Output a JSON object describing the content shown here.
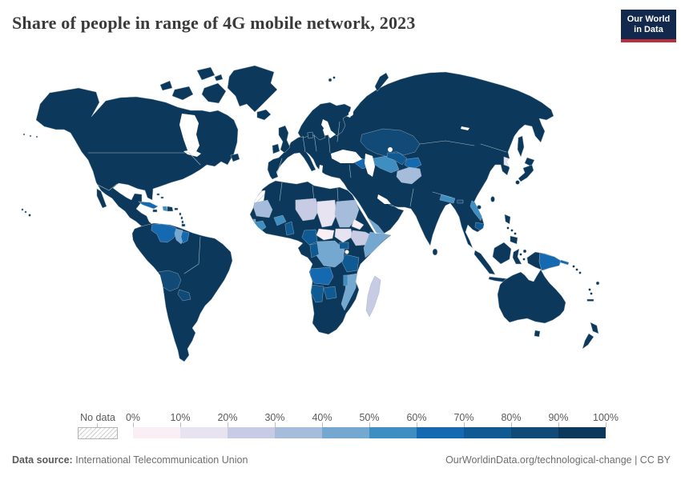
{
  "header": {
    "title": "Share of people in range of 4G mobile network, 2023",
    "logo": {
      "line1": "Our World",
      "line2": "in Data"
    }
  },
  "legend": {
    "no_data_label": "No data",
    "ticks": [
      "0%",
      "10%",
      "20%",
      "30%",
      "40%",
      "50%",
      "60%",
      "70%",
      "80%",
      "90%",
      "100%"
    ]
  },
  "footer": {
    "source_label": "Data source:",
    "source_value": "International Telecommunication Union",
    "credit": "OurWorldinData.org/technological-change | CC BY"
  },
  "colors": {
    "logo_bg": "#12294d",
    "logo_red": "#b92e3b",
    "ocean": "#ffffff",
    "country_border": "#a7b9c6",
    "land_default": "#0c395b"
  },
  "chart_data": {
    "type": "choropleth",
    "title": "Share of people in range of 4G mobile network, 2023",
    "year": 2023,
    "unit": "%",
    "legend_position": "bottom",
    "bins": [
      {
        "range": "0-10%",
        "color": "#fbeff6"
      },
      {
        "range": "10-20%",
        "color": "#e7e3f1"
      },
      {
        "range": "20-30%",
        "color": "#c7cbe4"
      },
      {
        "range": "30-40%",
        "color": "#a5bcdb"
      },
      {
        "range": "40-50%",
        "color": "#74a8d0"
      },
      {
        "range": "50-60%",
        "color": "#3e8ec1"
      },
      {
        "range": "60-70%",
        "color": "#1569b1"
      },
      {
        "range": "70-80%",
        "color": "#0f5a92"
      },
      {
        "range": "80-90%",
        "color": "#114a76"
      },
      {
        "range": "90-100%",
        "color": "#0c395b"
      }
    ],
    "default_bin": "90-100%",
    "no_data": [
      "Western Sahara"
    ],
    "regions": [
      {
        "name": "Chad",
        "bin": "0-10%"
      },
      {
        "name": "Central African Republic",
        "bin": "0-10%"
      },
      {
        "name": "Eritrea",
        "bin": "0-10%"
      },
      {
        "name": "South Sudan",
        "bin": "10-20%"
      },
      {
        "name": "North Korea",
        "bin": "10-20%"
      },
      {
        "name": "Niger",
        "bin": "20-30%"
      },
      {
        "name": "Ethiopia",
        "bin": "20-30%"
      },
      {
        "name": "Madagascar",
        "bin": "20-30%"
      },
      {
        "name": "Mauritania",
        "bin": "30-40%"
      },
      {
        "name": "Sudan",
        "bin": "30-40%"
      },
      {
        "name": "Afghanistan",
        "bin": "30-40%"
      },
      {
        "name": "Somalia",
        "bin": "40-50%"
      },
      {
        "name": "Democratic Republic of Congo",
        "bin": "40-50%"
      },
      {
        "name": "Mozambique",
        "bin": "40-50%"
      },
      {
        "name": "Guyana",
        "bin": "40-50%"
      },
      {
        "name": "Yemen",
        "bin": "40-50%"
      },
      {
        "name": "Guinea-Bissau",
        "bin": "40-50%"
      },
      {
        "name": "Turkmenistan",
        "bin": "50-60%"
      },
      {
        "name": "Laos",
        "bin": "50-60%"
      },
      {
        "name": "Nepal",
        "bin": "50-60%"
      },
      {
        "name": "Guinea",
        "bin": "50-60%"
      },
      {
        "name": "Burkina Faso",
        "bin": "50-60%"
      },
      {
        "name": "Haiti",
        "bin": "50-60%"
      },
      {
        "name": "Malawi",
        "bin": "50-60%"
      },
      {
        "name": "Venezuela",
        "bin": "60-70%"
      },
      {
        "name": "Papua New Guinea",
        "bin": "60-70%"
      },
      {
        "name": "Cuba",
        "bin": "60-70%"
      },
      {
        "name": "Angola",
        "bin": "60-70%"
      },
      {
        "name": "Suriname",
        "bin": "60-70%"
      },
      {
        "name": "Azerbaijan",
        "bin": "60-70%"
      },
      {
        "name": "Tanzania",
        "bin": "70-80%"
      },
      {
        "name": "Namibia",
        "bin": "70-80%"
      },
      {
        "name": "Botswana",
        "bin": "70-80%"
      },
      {
        "name": "Cameroon",
        "bin": "70-80%"
      },
      {
        "name": "Congo",
        "bin": "70-80%"
      },
      {
        "name": "Uganda",
        "bin": "70-80%"
      },
      {
        "name": "Kyrgyzstan",
        "bin": "70-80%"
      },
      {
        "name": "Cambodia",
        "bin": "70-80%"
      },
      {
        "name": "Benin",
        "bin": "70-80%"
      },
      {
        "name": "Kazakhstan",
        "bin": "80-90%"
      },
      {
        "name": "Uzbekistan",
        "bin": "80-90%"
      },
      {
        "name": "Bolivia",
        "bin": "80-90%"
      },
      {
        "name": "Paraguay",
        "bin": "80-90%"
      },
      {
        "name": "Bhutan",
        "bin": "80-90%"
      },
      {
        "name": "Most other countries (Americas, Europe, Russia, China, India, Middle East, Australia)",
        "bin": "90-100%"
      }
    ]
  }
}
